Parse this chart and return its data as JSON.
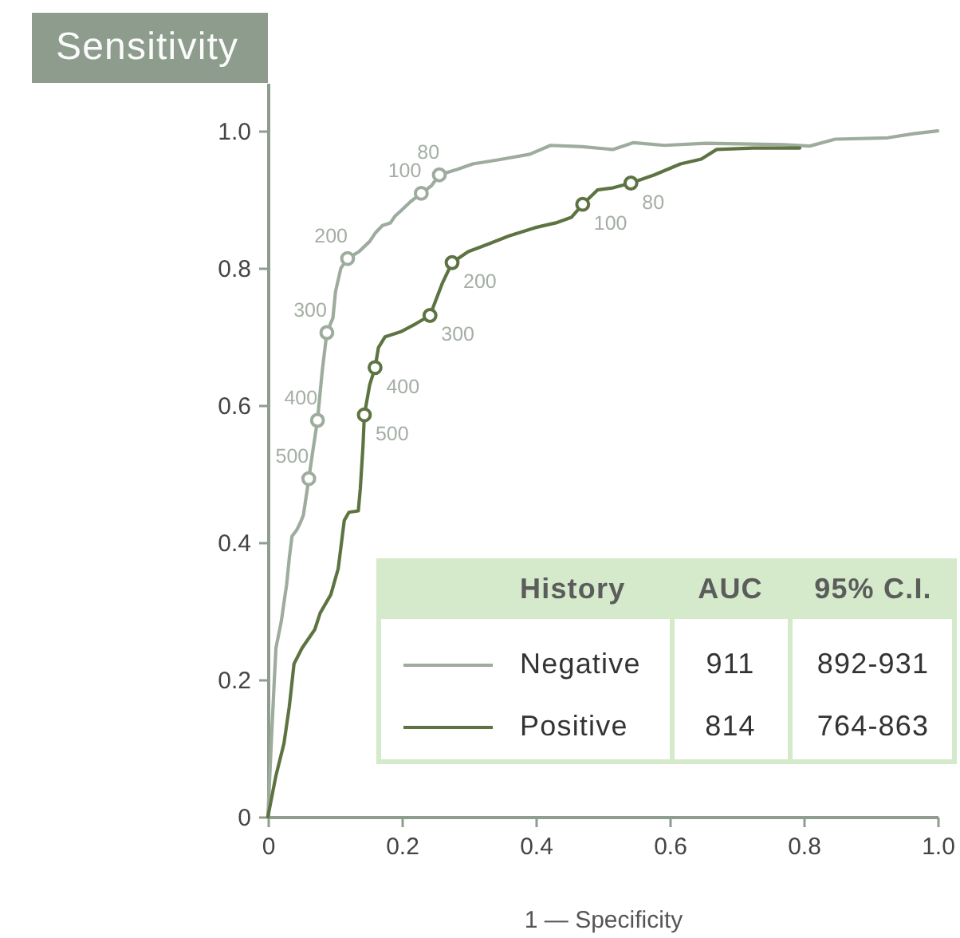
{
  "chart_data": {
    "type": "line",
    "ylabel": "Sensitivity",
    "xlabel": "1 — Specificity",
    "legend_title": "History",
    "legend": "bottom",
    "xlim": [
      0,
      1
    ],
    "xticks": [
      0,
      0.2,
      0.4,
      0.6,
      0.8,
      {
        "value": 1,
        "label": "1.0"
      }
    ],
    "ylim": [
      0,
      1.07
    ],
    "yticks": [
      0,
      0.2,
      0.4,
      0.6,
      0.8,
      {
        "value": 1,
        "label": "1.0"
      }
    ],
    "series": [
      {
        "name": "Negative",
        "color": "#9eac9e",
        "x": [
          0,
          0.005,
          0.009,
          0.012,
          0.02,
          0.028,
          0.032,
          0.036,
          0.043,
          0.049,
          0.053,
          0.059,
          0.061,
          0.067,
          0.074,
          0.081,
          0.088,
          0.097,
          0.101,
          0.109,
          0.119,
          0.136,
          0.152,
          0.161,
          0.171,
          0.183,
          0.19,
          0.198,
          0.213,
          0.229,
          0.244,
          0.256,
          0.283,
          0.306,
          0.345,
          0.391,
          0.422,
          0.469,
          0.515,
          0.546,
          0.592,
          0.654,
          0.77,
          0.809,
          0.847,
          0.925,
          0.964,
          1
        ],
        "values": [
          0,
          0.107,
          0.188,
          0.246,
          0.285,
          0.339,
          0.378,
          0.409,
          0.418,
          0.43,
          0.44,
          0.479,
          0.493,
          0.533,
          0.578,
          0.649,
          0.706,
          0.727,
          0.766,
          0.8,
          0.814,
          0.824,
          0.839,
          0.852,
          0.862,
          0.866,
          0.876,
          0.883,
          0.897,
          0.909,
          0.92,
          0.936,
          0.944,
          0.952,
          0.958,
          0.966,
          0.979,
          0.977,
          0.973,
          0.983,
          0.979,
          0.982,
          0.98,
          0.978,
          0.988,
          0.99,
          0.996,
          1
        ]
      },
      {
        "name": "Positive",
        "color": "#5e7342",
        "x": [
          0,
          0.012,
          0.024,
          0.032,
          0.039,
          0.051,
          0.07,
          0.078,
          0.094,
          0.105,
          0.114,
          0.121,
          0.135,
          0.138,
          0.142,
          0.144,
          0.152,
          0.16,
          0.165,
          0.175,
          0.198,
          0.221,
          0.242,
          0.26,
          0.275,
          0.299,
          0.329,
          0.36,
          0.399,
          0.43,
          0.453,
          0.47,
          0.492,
          0.515,
          0.542,
          0.577,
          0.616,
          0.647,
          0.67,
          0.724,
          0.77,
          0.794
        ],
        "values": [
          0,
          0.06,
          0.107,
          0.161,
          0.223,
          0.246,
          0.273,
          0.297,
          0.324,
          0.362,
          0.432,
          0.444,
          0.446,
          0.479,
          0.541,
          0.586,
          0.63,
          0.655,
          0.684,
          0.7,
          0.707,
          0.719,
          0.731,
          0.777,
          0.808,
          0.824,
          0.835,
          0.847,
          0.859,
          0.866,
          0.874,
          0.893,
          0.914,
          0.917,
          0.924,
          0.936,
          0.952,
          0.959,
          0.973,
          0.975,
          0.975,
          0.975
        ]
      },
      {
        "type": "scatter",
        "color": "#9eac9e",
        "marker": "circle",
        "x": [
          0.256,
          0.229,
          0.119,
          0.088,
          0.074,
          0.061
        ],
        "values": [
          0.936,
          0.909,
          0.814,
          0.706,
          0.578,
          0.493
        ]
      },
      {
        "type": "scatter",
        "color": "#5e7342",
        "marker": "circle",
        "x": [
          0.542,
          0.47,
          0.275,
          0.242,
          0.16,
          0.144
        ],
        "values": [
          0.924,
          0.893,
          0.808,
          0.731,
          0.655,
          0.586
        ]
      }
    ],
    "annotations": [
      {
        "text": "80",
        "x": 0.256,
        "y": 0.936
      },
      {
        "text": "100",
        "x": 0.229,
        "y": 0.909
      },
      {
        "text": "200",
        "x": 0.119,
        "y": 0.814
      },
      {
        "text": "300",
        "x": 0.088,
        "y": 0.706
      },
      {
        "text": "400",
        "x": 0.074,
        "y": 0.578
      },
      {
        "text": "500",
        "x": 0.061,
        "y": 0.493
      },
      {
        "text": "80",
        "x": 0.542,
        "y": 0.924
      },
      {
        "text": "100",
        "x": 0.47,
        "y": 0.893
      },
      {
        "text": "200",
        "x": 0.275,
        "y": 0.808
      },
      {
        "text": "300",
        "x": 0.242,
        "y": 0.731
      },
      {
        "text": "400",
        "x": 0.16,
        "y": 0.655
      },
      {
        "text": "500",
        "x": 0.144,
        "y": 0.586
      },
      "AUC",
      "95% C.I.",
      "911",
      "892-931",
      "814",
      "764-863"
    ]
  }
}
